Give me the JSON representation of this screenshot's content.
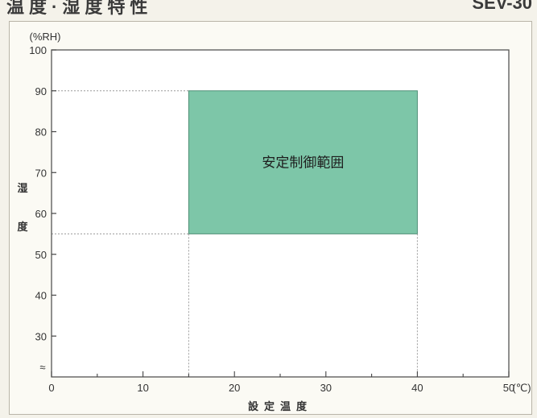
{
  "header": {
    "title": "温度·湿度特性",
    "model_code": "SEV-30"
  },
  "chart_data": {
    "type": "area",
    "title": "",
    "xlabel": "設定温度",
    "ylabel": "湿度",
    "x_unit": "(℃)",
    "y_unit": "(%RH)",
    "xlim": [
      0,
      50
    ],
    "ylim": [
      20,
      100
    ],
    "x_ticks": [
      0,
      10,
      20,
      30,
      40,
      50
    ],
    "y_ticks": [
      30,
      40,
      50,
      60,
      70,
      80,
      90,
      100
    ],
    "axis_break_symbol": "≈",
    "grid": false,
    "region": {
      "name": "安定制御範囲",
      "x_range": [
        15,
        40
      ],
      "y_range": [
        55,
        90
      ],
      "color": "#7dc6a8"
    },
    "guide_lines": {
      "x": [
        15,
        40
      ],
      "y": [
        55,
        90
      ]
    }
  }
}
